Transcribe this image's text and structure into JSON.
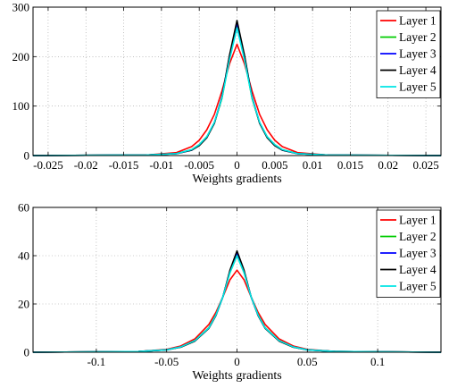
{
  "chart_data": [
    {
      "type": "line",
      "title": "",
      "xlabel": "Weights gradients",
      "ylabel": "",
      "xlim": [
        -0.027,
        0.027
      ],
      "ylim": [
        0,
        300
      ],
      "xticks": [
        -0.025,
        -0.02,
        -0.015,
        -0.01,
        -0.005,
        0,
        0.005,
        0.01,
        0.015,
        0.02,
        0.025
      ],
      "xtick_labels": [
        "-0.025",
        "-0.02",
        "-0.015",
        "-0.01",
        "-0.005",
        "0",
        "0.005",
        "0.01",
        "0.015",
        "0.02",
        "0.025"
      ],
      "yticks": [
        0,
        100,
        200,
        300
      ],
      "ytick_labels": [
        "0",
        "100",
        "200",
        "300"
      ],
      "grid": true,
      "legend_position": "top-right",
      "series": [
        {
          "name": "Layer 1",
          "color": "#ff0000",
          "x": [
            -0.027,
            -0.012,
            -0.008,
            -0.006,
            -0.005,
            -0.004,
            -0.003,
            -0.002,
            -0.001,
            0,
            0.001,
            0.002,
            0.003,
            0.004,
            0.005,
            0.006,
            0.008,
            0.012,
            0.027
          ],
          "y": [
            0,
            1,
            6,
            18,
            31,
            52,
            83,
            130,
            185,
            225,
            185,
            130,
            83,
            52,
            31,
            18,
            6,
            1,
            0
          ]
        },
        {
          "name": "Layer 2",
          "color": "#00cc00",
          "x": [
            -0.027,
            -0.012,
            -0.008,
            -0.006,
            -0.005,
            -0.004,
            -0.003,
            -0.002,
            -0.001,
            0,
            0.001,
            0.002,
            0.003,
            0.004,
            0.005,
            0.006,
            0.008,
            0.012,
            0.027
          ],
          "y": [
            0,
            1,
            4,
            12,
            22,
            38,
            66,
            115,
            195,
            262,
            195,
            115,
            66,
            38,
            22,
            12,
            4,
            1,
            0
          ]
        },
        {
          "name": "Layer 3",
          "color": "#0000ff",
          "x": [
            -0.027,
            -0.012,
            -0.008,
            -0.006,
            -0.005,
            -0.004,
            -0.003,
            -0.002,
            -0.001,
            0,
            0.001,
            0.002,
            0.003,
            0.004,
            0.005,
            0.006,
            0.008,
            0.012,
            0.027
          ],
          "y": [
            0,
            1,
            4,
            11,
            21,
            37,
            66,
            118,
            200,
            268,
            200,
            118,
            66,
            37,
            21,
            11,
            4,
            1,
            0
          ]
        },
        {
          "name": "Layer 4",
          "color": "#000000",
          "x": [
            -0.027,
            -0.012,
            -0.008,
            -0.006,
            -0.005,
            -0.004,
            -0.003,
            -0.002,
            -0.001,
            0,
            0.001,
            0.002,
            0.003,
            0.004,
            0.005,
            0.006,
            0.008,
            0.012,
            0.027
          ],
          "y": [
            0,
            1,
            4,
            11,
            20,
            36,
            65,
            117,
            202,
            273,
            202,
            117,
            65,
            36,
            20,
            11,
            4,
            1,
            0
          ]
        },
        {
          "name": "Layer 5",
          "color": "#00e5e5",
          "x": [
            -0.027,
            -0.012,
            -0.008,
            -0.006,
            -0.005,
            -0.004,
            -0.003,
            -0.002,
            -0.001,
            0,
            0.001,
            0.002,
            0.003,
            0.004,
            0.005,
            0.006,
            0.008,
            0.012,
            0.027
          ],
          "y": [
            0,
            1,
            4,
            12,
            22,
            38,
            67,
            116,
            193,
            258,
            193,
            116,
            67,
            38,
            22,
            12,
            4,
            1,
            0
          ]
        }
      ]
    },
    {
      "type": "line",
      "title": "",
      "xlabel": "Weights gradients",
      "ylabel": "",
      "xlim": [
        -0.145,
        0.145
      ],
      "ylim": [
        0,
        60
      ],
      "xticks": [
        -0.1,
        -0.05,
        0,
        0.05,
        0.1
      ],
      "xtick_labels": [
        "-0.1",
        "-0.05",
        "0",
        "0.05",
        "0.1"
      ],
      "yticks": [
        0,
        20,
        40,
        60
      ],
      "ytick_labels": [
        "0",
        "20",
        "40",
        "60"
      ],
      "grid": true,
      "legend_position": "top-right",
      "series": [
        {
          "name": "Layer 1",
          "color": "#ff0000",
          "x": [
            -0.145,
            -0.07,
            -0.05,
            -0.04,
            -0.03,
            -0.02,
            -0.015,
            -0.01,
            -0.005,
            0,
            0.005,
            0.01,
            0.015,
            0.02,
            0.03,
            0.04,
            0.05,
            0.07,
            0.145
          ],
          "y": [
            0,
            0.3,
            1.2,
            2.6,
            5.5,
            11.5,
            16.5,
            23,
            30,
            34,
            30,
            23,
            16.5,
            11.5,
            5.5,
            2.6,
            1.2,
            0.3,
            0
          ]
        },
        {
          "name": "Layer 2",
          "color": "#00cc00",
          "x": [
            -0.145,
            -0.07,
            -0.05,
            -0.04,
            -0.03,
            -0.02,
            -0.015,
            -0.01,
            -0.005,
            0,
            0.005,
            0.01,
            0.015,
            0.02,
            0.03,
            0.04,
            0.05,
            0.07,
            0.145
          ],
          "y": [
            0,
            0.3,
            1.0,
            2.2,
            4.8,
            10.2,
            15.5,
            23,
            33,
            40,
            33,
            23,
            15.5,
            10.2,
            4.8,
            2.2,
            1.0,
            0.3,
            0
          ]
        },
        {
          "name": "Layer 3",
          "color": "#0000ff",
          "x": [
            -0.145,
            -0.07,
            -0.05,
            -0.04,
            -0.03,
            -0.02,
            -0.015,
            -0.01,
            -0.005,
            0,
            0.005,
            0.01,
            0.015,
            0.02,
            0.03,
            0.04,
            0.05,
            0.07,
            0.145
          ],
          "y": [
            0,
            0.3,
            1.0,
            2.2,
            4.7,
            10.0,
            15.3,
            23,
            33.5,
            41,
            33.5,
            23,
            15.3,
            10.0,
            4.7,
            2.2,
            1.0,
            0.3,
            0
          ]
        },
        {
          "name": "Layer 4",
          "color": "#000000",
          "x": [
            -0.145,
            -0.07,
            -0.05,
            -0.04,
            -0.03,
            -0.02,
            -0.015,
            -0.01,
            -0.005,
            0,
            0.005,
            0.01,
            0.015,
            0.02,
            0.03,
            0.04,
            0.05,
            0.07,
            0.145
          ],
          "y": [
            0,
            0.3,
            1.0,
            2.1,
            4.6,
            9.9,
            15.2,
            23,
            34,
            42,
            34,
            23,
            15.2,
            9.9,
            4.6,
            2.1,
            1.0,
            0.3,
            0
          ]
        },
        {
          "name": "Layer 5",
          "color": "#00e5e5",
          "x": [
            -0.145,
            -0.07,
            -0.05,
            -0.04,
            -0.03,
            -0.02,
            -0.015,
            -0.01,
            -0.005,
            0,
            0.005,
            0.01,
            0.015,
            0.02,
            0.03,
            0.04,
            0.05,
            0.07,
            0.145
          ],
          "y": [
            0,
            0.3,
            1.0,
            2.2,
            4.8,
            10.1,
            15.4,
            23,
            33,
            40,
            33,
            23,
            15.4,
            10.1,
            4.8,
            2.2,
            1.0,
            0.3,
            0
          ]
        }
      ]
    }
  ]
}
